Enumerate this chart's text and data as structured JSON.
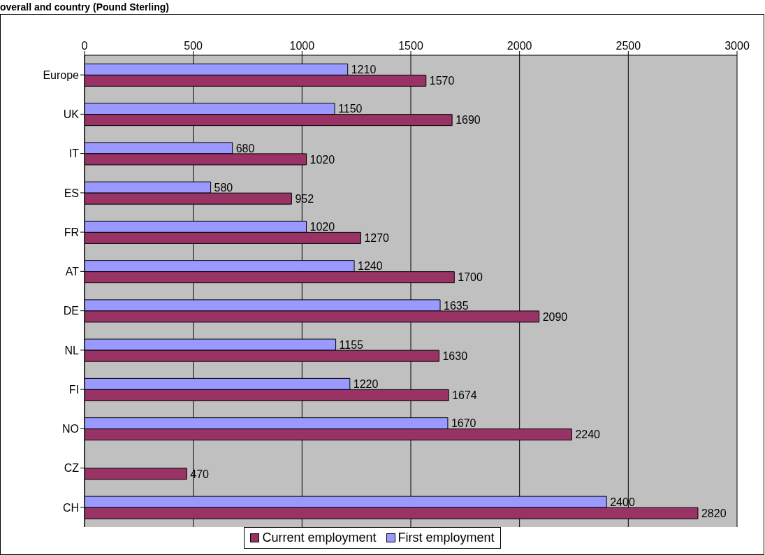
{
  "chart_data": {
    "type": "bar",
    "orientation": "horizontal",
    "title": "overall and country (Pound Sterling)",
    "categories": [
      "Europe",
      "UK",
      "IT",
      "ES",
      "FR",
      "AT",
      "DE",
      "NL",
      "FI",
      "NO",
      "CZ",
      "CH"
    ],
    "series": [
      {
        "name": "First employment",
        "color": "#9999ff",
        "values": [
          1210,
          1150,
          680,
          580,
          1020,
          1240,
          1635,
          1155,
          1220,
          1670,
          null,
          2400
        ]
      },
      {
        "name": "Current employment",
        "color": "#993366",
        "values": [
          1570,
          1690,
          1020,
          952,
          1270,
          1700,
          2090,
          1630,
          1674,
          2240,
          470,
          2820
        ]
      }
    ],
    "xlim": [
      0,
      3000
    ],
    "xticks": [
      0,
      500,
      1000,
      1500,
      2000,
      2500,
      3000
    ],
    "grid": "x",
    "legend": "bottom",
    "data_labels": true
  }
}
